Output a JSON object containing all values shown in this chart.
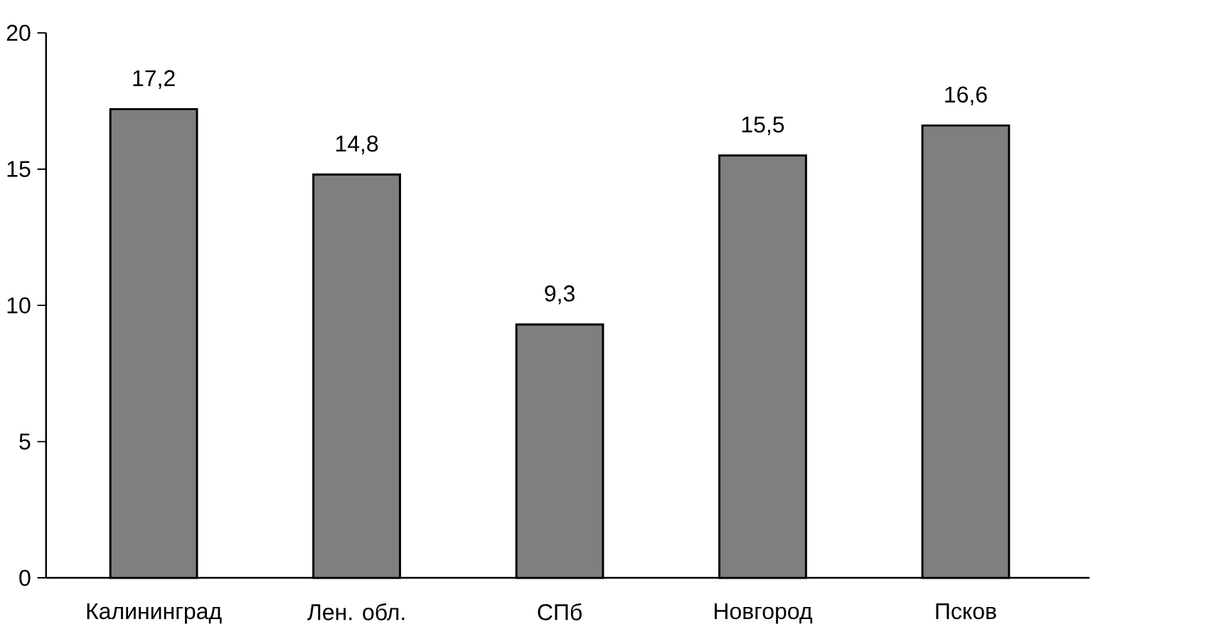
{
  "chart_data": {
    "type": "bar",
    "categories": [
      "Калининград",
      "Лен. обл.",
      "СПб",
      "Новгород",
      "Псков"
    ],
    "values": [
      17.2,
      14.8,
      9.3,
      15.5,
      16.6
    ],
    "value_labels": [
      "17,2",
      "14,8",
      "9,3",
      "15,5",
      "16,6"
    ],
    "color": "#7f7f7f",
    "ylim": [
      0,
      20
    ],
    "yticks": [
      0,
      5,
      10,
      15,
      20
    ],
    "grid": false
  }
}
